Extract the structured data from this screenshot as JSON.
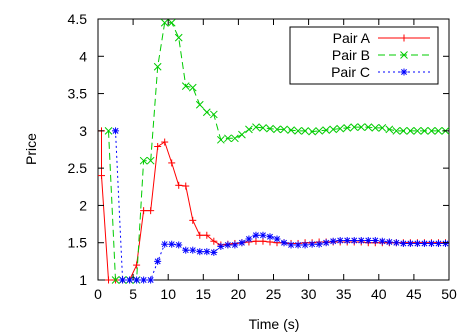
{
  "chart_data": {
    "type": "line",
    "title": "",
    "xlabel": "Time (s)",
    "ylabel": "Price",
    "xlim": [
      0,
      50
    ],
    "ylim": [
      1,
      4.5
    ],
    "xticks": [
      0,
      5,
      10,
      15,
      20,
      25,
      30,
      35,
      40,
      45,
      50
    ],
    "yticks": [
      1,
      1.5,
      2,
      2.5,
      3,
      3.5,
      4,
      4.5
    ],
    "grid": false,
    "legend_position": "top-right",
    "series": [
      {
        "name": "Pair A",
        "color": "#ff0000",
        "line_style": "solid",
        "marker": "plus",
        "points": [
          [
            0.5,
            3.0
          ],
          [
            0.5,
            2.4
          ],
          [
            1.5,
            1.0
          ],
          [
            2.5,
            1.0
          ],
          [
            3.5,
            1.0
          ],
          [
            4.5,
            1.0
          ],
          [
            5.5,
            1.2
          ],
          [
            6.5,
            1.93
          ],
          [
            7.5,
            1.93
          ],
          [
            8.5,
            2.79
          ],
          [
            9.5,
            2.85
          ],
          [
            10.5,
            2.57
          ],
          [
            11.5,
            2.27
          ],
          [
            12.5,
            2.26
          ],
          [
            13.5,
            1.8
          ],
          [
            14.5,
            1.6
          ],
          [
            15.5,
            1.6
          ],
          [
            16.5,
            1.52
          ],
          [
            17.5,
            1.47
          ],
          [
            18.5,
            1.48
          ],
          [
            19.5,
            1.49
          ],
          [
            20.5,
            1.5
          ],
          [
            21.5,
            1.51
          ],
          [
            22.5,
            1.52
          ],
          [
            23.5,
            1.52
          ],
          [
            24.5,
            1.51
          ],
          [
            25.5,
            1.5
          ],
          [
            26.5,
            1.5
          ],
          [
            27.5,
            1.49
          ],
          [
            28.5,
            1.49
          ],
          [
            29.5,
            1.5
          ],
          [
            30.5,
            1.5
          ],
          [
            31.5,
            1.51
          ],
          [
            32.5,
            1.51
          ],
          [
            33.5,
            1.51
          ],
          [
            34.5,
            1.51
          ],
          [
            35.5,
            1.51
          ],
          [
            36.5,
            1.51
          ],
          [
            37.5,
            1.51
          ],
          [
            38.5,
            1.5
          ],
          [
            39.5,
            1.5
          ],
          [
            40.5,
            1.5
          ],
          [
            41.5,
            1.5
          ],
          [
            42.5,
            1.5
          ],
          [
            43.5,
            1.5
          ],
          [
            44.5,
            1.5
          ],
          [
            45.5,
            1.5
          ],
          [
            46.5,
            1.5
          ],
          [
            47.5,
            1.5
          ],
          [
            48.5,
            1.5
          ],
          [
            49.5,
            1.5
          ]
        ]
      },
      {
        "name": "Pair B",
        "color": "#00cc00",
        "line_style": "dashed",
        "marker": "cross",
        "points": [
          [
            1.5,
            3.0
          ],
          [
            2.5,
            1.0
          ],
          [
            3.5,
            1.0
          ],
          [
            4.5,
            1.0
          ],
          [
            5.5,
            1.0
          ],
          [
            6.5,
            2.6
          ],
          [
            7.5,
            2.6
          ],
          [
            8.5,
            3.86
          ],
          [
            9.5,
            4.45
          ],
          [
            10.5,
            4.45
          ],
          [
            11.5,
            4.25
          ],
          [
            12.5,
            3.6
          ],
          [
            13.5,
            3.58
          ],
          [
            14.5,
            3.35
          ],
          [
            15.5,
            3.25
          ],
          [
            16.5,
            3.22
          ],
          [
            17.5,
            2.88
          ],
          [
            18.5,
            2.9
          ],
          [
            19.5,
            2.9
          ],
          [
            20.5,
            2.95
          ],
          [
            21.5,
            3.02
          ],
          [
            22.5,
            3.05
          ],
          [
            23.5,
            3.04
          ],
          [
            24.5,
            3.03
          ],
          [
            25.5,
            3.02
          ],
          [
            26.5,
            3.02
          ],
          [
            27.5,
            3.01
          ],
          [
            28.5,
            3.0
          ],
          [
            29.5,
            3.0
          ],
          [
            30.5,
            2.99
          ],
          [
            31.5,
            3.0
          ],
          [
            32.5,
            3.01
          ],
          [
            33.5,
            3.02
          ],
          [
            34.5,
            3.03
          ],
          [
            35.5,
            3.04
          ],
          [
            36.5,
            3.05
          ],
          [
            37.5,
            3.05
          ],
          [
            38.5,
            3.05
          ],
          [
            39.5,
            3.04
          ],
          [
            40.5,
            3.04
          ],
          [
            41.5,
            3.02
          ],
          [
            42.5,
            3.0
          ],
          [
            43.5,
            3.0
          ],
          [
            44.5,
            3.0
          ],
          [
            45.5,
            3.0
          ],
          [
            46.5,
            3.0
          ],
          [
            47.5,
            3.0
          ],
          [
            48.5,
            3.0
          ],
          [
            49.5,
            3.0
          ]
        ]
      },
      {
        "name": "Pair C",
        "color": "#0000ff",
        "line_style": "dotted",
        "marker": "star",
        "points": [
          [
            2.5,
            3.0
          ],
          [
            3.5,
            1.0
          ],
          [
            4.5,
            1.0
          ],
          [
            5.5,
            1.0
          ],
          [
            6.5,
            1.0
          ],
          [
            7.5,
            1.0
          ],
          [
            8.5,
            1.25
          ],
          [
            9.5,
            1.48
          ],
          [
            10.5,
            1.48
          ],
          [
            11.5,
            1.47
          ],
          [
            12.5,
            1.4
          ],
          [
            13.5,
            1.4
          ],
          [
            14.5,
            1.38
          ],
          [
            15.5,
            1.38
          ],
          [
            16.5,
            1.37
          ],
          [
            17.5,
            1.45
          ],
          [
            18.5,
            1.47
          ],
          [
            19.5,
            1.47
          ],
          [
            20.5,
            1.5
          ],
          [
            21.5,
            1.55
          ],
          [
            22.5,
            1.6
          ],
          [
            23.5,
            1.6
          ],
          [
            24.5,
            1.58
          ],
          [
            25.5,
            1.55
          ],
          [
            26.5,
            1.5
          ],
          [
            27.5,
            1.47
          ],
          [
            28.5,
            1.47
          ],
          [
            29.5,
            1.47
          ],
          [
            30.5,
            1.48
          ],
          [
            31.5,
            1.48
          ],
          [
            32.5,
            1.5
          ],
          [
            33.5,
            1.52
          ],
          [
            34.5,
            1.53
          ],
          [
            35.5,
            1.53
          ],
          [
            36.5,
            1.53
          ],
          [
            37.5,
            1.53
          ],
          [
            38.5,
            1.53
          ],
          [
            39.5,
            1.53
          ],
          [
            40.5,
            1.52
          ],
          [
            41.5,
            1.51
          ],
          [
            42.5,
            1.5
          ],
          [
            43.5,
            1.49
          ],
          [
            44.5,
            1.49
          ],
          [
            45.5,
            1.49
          ],
          [
            46.5,
            1.49
          ],
          [
            47.5,
            1.49
          ],
          [
            48.5,
            1.49
          ],
          [
            49.5,
            1.49
          ]
        ]
      }
    ]
  }
}
